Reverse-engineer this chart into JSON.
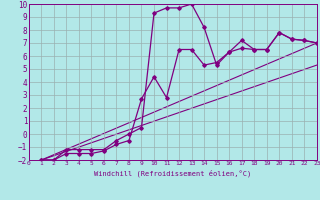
{
  "xlabel": "Windchill (Refroidissement éolien,°C)",
  "bg_color": "#b2e8e8",
  "line_color": "#800080",
  "grid_color": "#9ab0b0",
  "xmin": 0,
  "xmax": 23,
  "ymin": -2,
  "ymax": 10,
  "curve1_x": [
    1,
    2,
    3,
    4,
    5,
    6,
    7,
    8,
    9,
    10,
    11,
    12,
    13,
    14,
    15,
    16,
    17,
    18,
    19,
    20,
    21,
    22,
    23
  ],
  "curve1_y": [
    -2,
    -2,
    -1.2,
    -1.2,
    -1.2,
    -1.2,
    -0.5,
    0.0,
    0.5,
    9.3,
    9.7,
    9.7,
    10.0,
    8.2,
    5.3,
    6.3,
    7.2,
    6.5,
    6.5,
    7.8,
    7.3,
    7.2,
    7.0
  ],
  "curve2_x": [
    1,
    2,
    3,
    4,
    5,
    6,
    7,
    8,
    9,
    10,
    11,
    12,
    13,
    14,
    15,
    16,
    17,
    18,
    19,
    20,
    21,
    22,
    23
  ],
  "curve2_y": [
    -2,
    -2,
    -1.5,
    -1.5,
    -1.5,
    -1.3,
    -0.8,
    -0.5,
    2.7,
    4.4,
    2.8,
    6.5,
    6.5,
    5.3,
    5.5,
    6.3,
    6.6,
    6.5,
    6.5,
    7.8,
    7.3,
    7.2,
    7.0
  ],
  "line1_x": [
    1,
    23
  ],
  "line1_y": [
    -2,
    7.0
  ],
  "line2_x": [
    1,
    23
  ],
  "line2_y": [
    -2,
    5.3
  ]
}
